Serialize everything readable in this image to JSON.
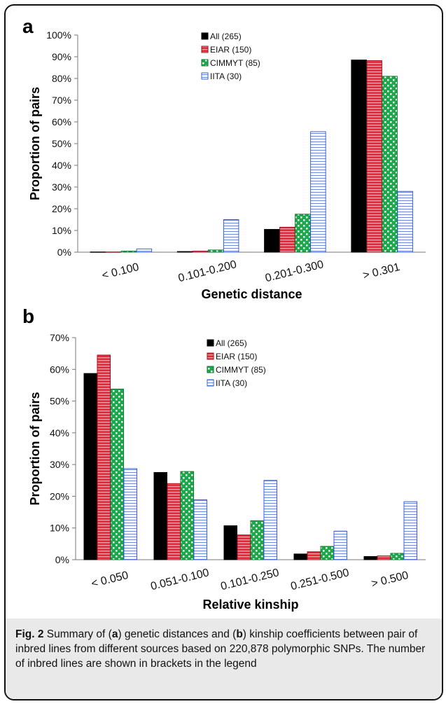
{
  "colors": {
    "All": "#000000",
    "EIAR": "#e8283a",
    "CIMMYT": "#1fa64a",
    "IITA": "#3a5fd0"
  },
  "chart_data": [
    {
      "type": "bar",
      "panel": "a",
      "xlabel": "Genetic distance",
      "ylabel": "Proportion of pairs",
      "ylim": [
        0,
        100
      ],
      "yticks": [
        "0%",
        "10%",
        "20%",
        "30%",
        "40%",
        "50%",
        "60%",
        "70%",
        "80%",
        "90%",
        "100%"
      ],
      "categories": [
        "< 0.100",
        "0.101-0.200",
        "0.201-0.300",
        "> 0.301"
      ],
      "legend_position": "top-left",
      "series": [
        {
          "name": "All (265)",
          "values": [
            0.1,
            0.3,
            10.5,
            88.5
          ]
        },
        {
          "name": "EIAR (150)",
          "values": [
            0.1,
            0.5,
            11.5,
            88.2
          ]
        },
        {
          "name": "CIMMYT (85)",
          "values": [
            0.5,
            1.0,
            17.5,
            81.0
          ]
        },
        {
          "name": "IITA (30)",
          "values": [
            1.5,
            15.0,
            55.5,
            28.0
          ]
        }
      ]
    },
    {
      "type": "bar",
      "panel": "b",
      "xlabel": "Relative kinship",
      "ylabel": "Proportion of pairs",
      "ylim": [
        0,
        70
      ],
      "yticks": [
        "0%",
        "10%",
        "20%",
        "30%",
        "40%",
        "50%",
        "60%",
        "70%"
      ],
      "categories": [
        "< 0.050",
        "0.051-0.100",
        "0.101-0.250",
        "0.251-0.500",
        "> 0.500"
      ],
      "legend_position": "top-center",
      "series": [
        {
          "name": "All (265)",
          "values": [
            58.7,
            27.5,
            10.7,
            1.8,
            1.0
          ]
        },
        {
          "name": "EIAR (150)",
          "values": [
            64.5,
            24.0,
            7.8,
            2.5,
            1.2
          ]
        },
        {
          "name": "CIMMYT (85)",
          "values": [
            53.8,
            27.8,
            12.3,
            4.2,
            2.0
          ]
        },
        {
          "name": "IITA (30)",
          "values": [
            28.7,
            18.9,
            25.0,
            9.0,
            18.3
          ]
        }
      ]
    }
  ],
  "caption": {
    "fig_label": "Fig. 2",
    "t1": " Summary of (",
    "a": "a",
    "t2": ") genetic distances and (",
    "b": "b",
    "t3": ") kinship coefficients between pair of inbred lines from different sources based on 220,878 polymorphic SNPs. The number of inbred lines are shown in brackets in the legend"
  }
}
